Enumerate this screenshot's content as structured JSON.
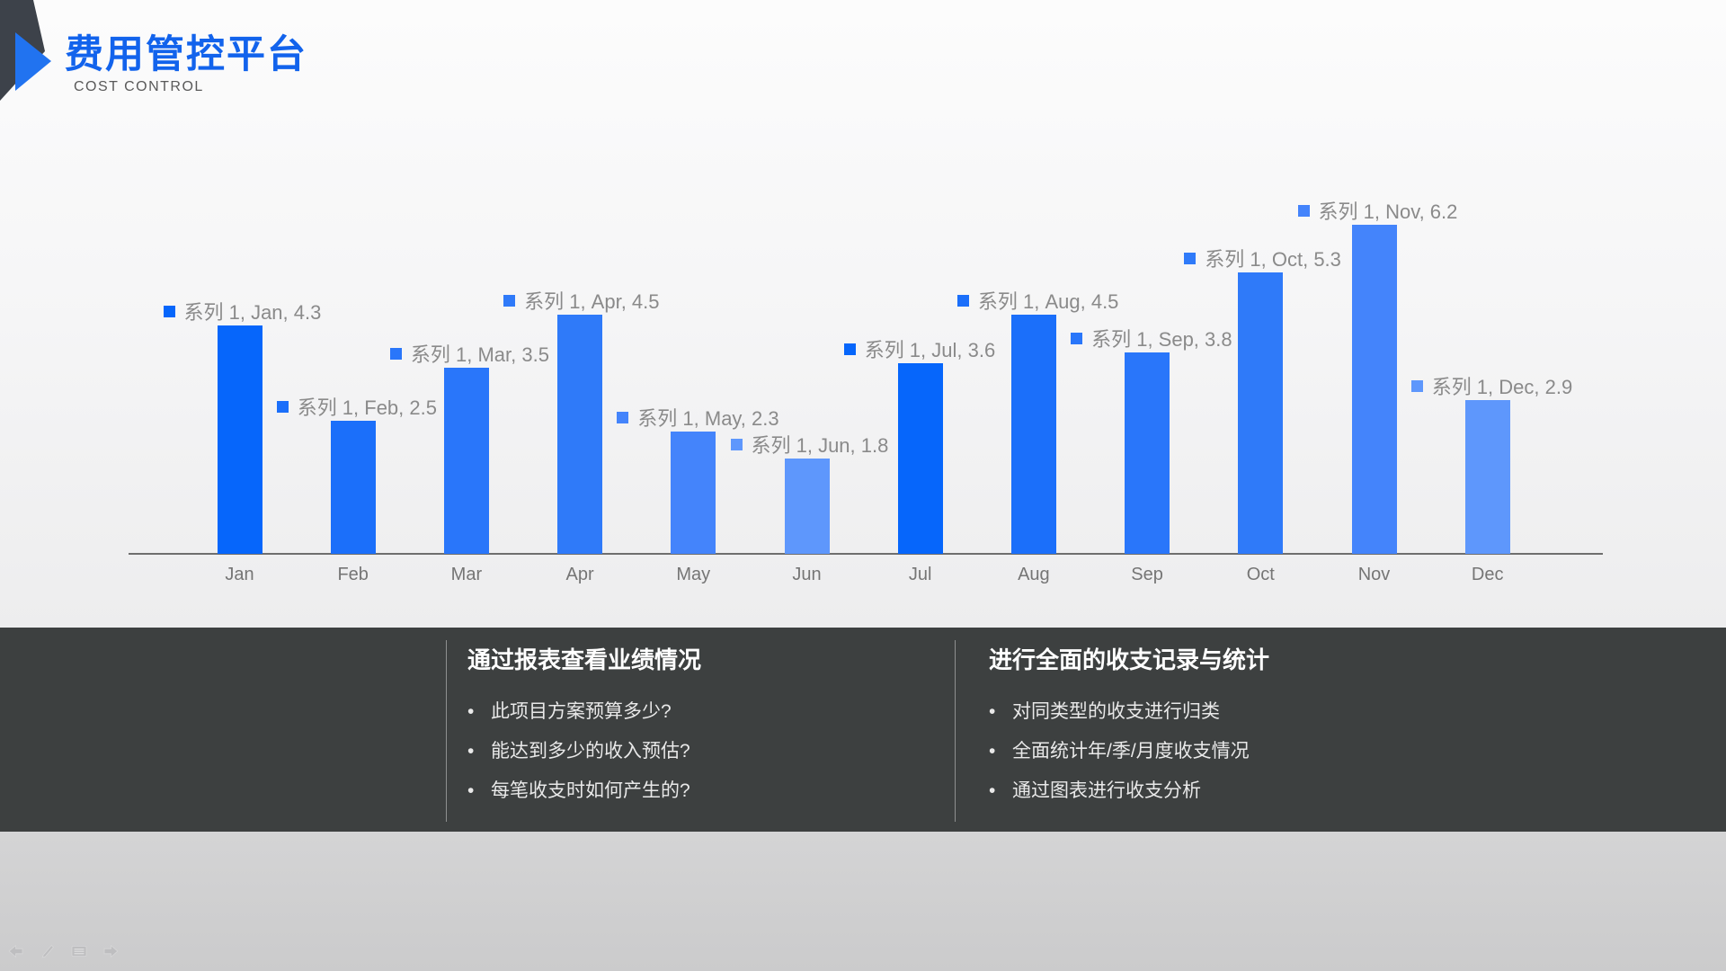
{
  "header": {
    "title": "费用管控平台",
    "subtitle": "COST CONTROL",
    "title_color": "#1263EC",
    "logo_dark_color": "#3d424a",
    "logo_blue_color": "#2173F0"
  },
  "chart_data": {
    "type": "bar",
    "title": "",
    "xlabel": "",
    "ylabel": "",
    "series_name": "系列 1",
    "categories": [
      "Jan",
      "Feb",
      "Mar",
      "Apr",
      "May",
      "Jun",
      "Jul",
      "Aug",
      "Sep",
      "Oct",
      "Nov",
      "Dec"
    ],
    "values": [
      4.3,
      2.5,
      3.5,
      4.5,
      2.3,
      1.8,
      3.6,
      4.5,
      3.8,
      5.3,
      6.2,
      2.9
    ],
    "labels": [
      "系列 1, Jan, 4.3",
      "系列 1, Feb, 2.5",
      "系列 1, Mar, 3.5",
      "系列 1, Apr, 4.5",
      "系列 1, May, 2.3",
      "系列 1, Jun, 1.8",
      "系列 1, Jul, 3.6",
      "系列 1, Aug, 4.5",
      "系列 1, Sep, 3.8",
      "系列 1, Oct, 5.3",
      "系列 1, Nov, 6.2",
      "系列 1, Dec, 2.9"
    ],
    "bar_colors": [
      "#0666FB",
      "#1B6FFA",
      "#2976FA",
      "#2F7AF9",
      "#4484FB",
      "#5E97FC",
      "#0666FB",
      "#1B6FFA",
      "#2976FA",
      "#2F7AF9",
      "#4484FB",
      "#5E97FC"
    ],
    "ylim": [
      0,
      6.5
    ],
    "grid": false,
    "legend_position": "none",
    "axis_color": "#6e6e6e",
    "data_label_color": "#8a8a8a",
    "category_label_color": "#757575"
  },
  "info_panel": {
    "background": "#3d4040",
    "columns": [
      {
        "heading": "通过报表查看业绩情况",
        "bullets": [
          "此项目方案预算多少?",
          "能达到多少的收入预估?",
          "每笔收支时如何产生的?"
        ]
      },
      {
        "heading": "进行全面的收支记录与统计",
        "bullets": [
          "对同类型的收支进行归类",
          "全面统计年/季/月度收支情况",
          "通过图表进行收支分析"
        ]
      }
    ]
  },
  "presenter_toolbar": {
    "icons": [
      "back-arrow",
      "pen",
      "slide-menu",
      "forward-arrow"
    ]
  }
}
